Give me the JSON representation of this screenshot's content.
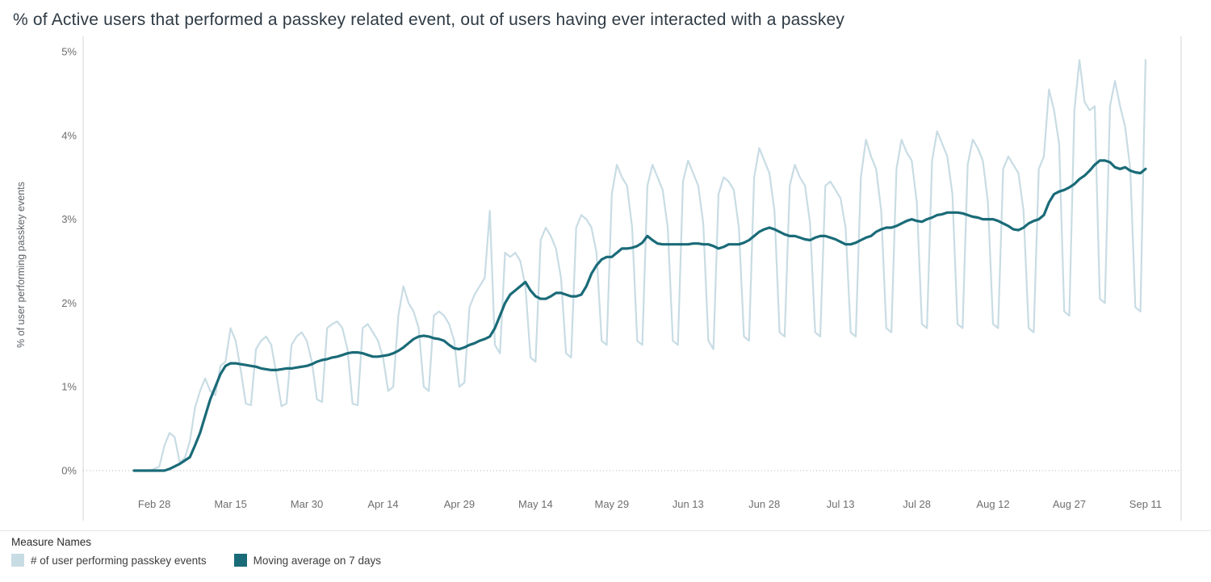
{
  "chart_data": {
    "type": "line",
    "title": "% of Active users that performed a passkey related event, out of users having ever interacted with a passkey",
    "ylabel": "% of user performing passkey events",
    "xlabel": "",
    "ylim": [
      0,
      5
    ],
    "x_domain_days": [
      -10,
      206
    ],
    "x_unit": "daily points; index 0 is 4 days before the Feb 28 tick; ticks every 15 days",
    "grid": "no gridlines except dotted zero line; left and right plot borders only",
    "legend_position": "bottom-left",
    "yticks": [
      {
        "value": 0,
        "label": "0%"
      },
      {
        "value": 1,
        "label": "1%"
      },
      {
        "value": 2,
        "label": "2%"
      },
      {
        "value": 3,
        "label": "3%"
      },
      {
        "value": 4,
        "label": "4%"
      },
      {
        "value": 5,
        "label": "5%"
      }
    ],
    "xticks": [
      {
        "day": 4,
        "label": "Feb 28"
      },
      {
        "day": 19,
        "label": "Mar 15"
      },
      {
        "day": 34,
        "label": "Mar 30"
      },
      {
        "day": 49,
        "label": "Apr 14"
      },
      {
        "day": 64,
        "label": "Apr 29"
      },
      {
        "day": 79,
        "label": "May 14"
      },
      {
        "day": 94,
        "label": "May 29"
      },
      {
        "day": 109,
        "label": "Jun 13"
      },
      {
        "day": 124,
        "label": "Jun 28"
      },
      {
        "day": 139,
        "label": "Jul 13"
      },
      {
        "day": 154,
        "label": "Jul 28"
      },
      {
        "day": 169,
        "label": "Aug 12"
      },
      {
        "day": 184,
        "label": "Aug 27"
      },
      {
        "day": 199,
        "label": "Sep 11"
      }
    ],
    "series": [
      {
        "name": "# of user performing passkey events",
        "color": "#c8dce4",
        "values": [
          0.0,
          0.0,
          0.0,
          0.0,
          0.02,
          0.05,
          0.3,
          0.45,
          0.4,
          0.1,
          0.15,
          0.35,
          0.75,
          0.95,
          1.1,
          0.95,
          0.9,
          1.25,
          1.3,
          1.7,
          1.55,
          1.2,
          0.8,
          0.78,
          1.45,
          1.55,
          1.6,
          1.5,
          1.15,
          0.77,
          0.8,
          1.5,
          1.6,
          1.65,
          1.55,
          1.3,
          0.85,
          0.82,
          1.7,
          1.75,
          1.78,
          1.7,
          1.45,
          0.8,
          0.78,
          1.7,
          1.75,
          1.65,
          1.55,
          1.35,
          0.95,
          1.0,
          1.85,
          2.2,
          2.0,
          1.9,
          1.7,
          1.0,
          0.95,
          1.85,
          1.9,
          1.85,
          1.75,
          1.55,
          1.0,
          1.05,
          1.95,
          2.1,
          2.2,
          2.3,
          3.1,
          1.5,
          1.4,
          2.6,
          2.55,
          2.6,
          2.5,
          2.2,
          1.35,
          1.3,
          2.75,
          2.9,
          2.8,
          2.65,
          2.3,
          1.4,
          1.35,
          2.9,
          3.05,
          3.0,
          2.9,
          2.6,
          1.55,
          1.5,
          3.3,
          3.65,
          3.5,
          3.4,
          2.9,
          1.55,
          1.5,
          3.4,
          3.65,
          3.5,
          3.35,
          2.9,
          1.55,
          1.5,
          3.45,
          3.7,
          3.55,
          3.4,
          2.95,
          1.55,
          1.45,
          3.3,
          3.5,
          3.45,
          3.35,
          2.9,
          1.6,
          1.55,
          3.5,
          3.85,
          3.7,
          3.55,
          3.1,
          1.65,
          1.6,
          3.4,
          3.65,
          3.5,
          3.4,
          2.95,
          1.65,
          1.6,
          3.4,
          3.45,
          3.35,
          3.25,
          2.9,
          1.65,
          1.6,
          3.5,
          3.95,
          3.75,
          3.6,
          3.1,
          1.7,
          1.65,
          3.6,
          3.95,
          3.8,
          3.7,
          3.2,
          1.75,
          1.7,
          3.7,
          4.05,
          3.9,
          3.75,
          3.3,
          1.75,
          1.7,
          3.65,
          3.95,
          3.85,
          3.7,
          3.2,
          1.75,
          1.7,
          3.6,
          3.75,
          3.65,
          3.55,
          3.1,
          1.7,
          1.65,
          3.6,
          3.75,
          4.55,
          4.3,
          3.9,
          1.9,
          1.85,
          4.3,
          4.9,
          4.4,
          4.3,
          4.35,
          2.05,
          2.0,
          4.35,
          4.65,
          4.35,
          4.1,
          3.6,
          1.95,
          1.9,
          4.9
        ]
      },
      {
        "name": "Moving average on 7 days",
        "color": "#1a6b78",
        "values": [
          0.0,
          0.0,
          0.0,
          0.0,
          0.0,
          0.0,
          0.0,
          0.02,
          0.05,
          0.08,
          0.12,
          0.16,
          0.3,
          0.45,
          0.65,
          0.85,
          1.0,
          1.15,
          1.25,
          1.28,
          1.28,
          1.27,
          1.26,
          1.25,
          1.24,
          1.22,
          1.21,
          1.2,
          1.2,
          1.21,
          1.22,
          1.22,
          1.23,
          1.24,
          1.25,
          1.27,
          1.3,
          1.32,
          1.33,
          1.35,
          1.36,
          1.38,
          1.4,
          1.41,
          1.41,
          1.4,
          1.38,
          1.36,
          1.36,
          1.37,
          1.38,
          1.4,
          1.43,
          1.47,
          1.52,
          1.57,
          1.6,
          1.61,
          1.6,
          1.58,
          1.57,
          1.55,
          1.5,
          1.46,
          1.45,
          1.47,
          1.5,
          1.52,
          1.55,
          1.57,
          1.6,
          1.7,
          1.85,
          2.0,
          2.1,
          2.15,
          2.2,
          2.25,
          2.15,
          2.08,
          2.05,
          2.05,
          2.08,
          2.12,
          2.12,
          2.1,
          2.08,
          2.08,
          2.1,
          2.2,
          2.35,
          2.45,
          2.52,
          2.55,
          2.55,
          2.6,
          2.65,
          2.65,
          2.66,
          2.68,
          2.72,
          2.8,
          2.75,
          2.71,
          2.7,
          2.7,
          2.7,
          2.7,
          2.7,
          2.7,
          2.71,
          2.71,
          2.7,
          2.7,
          2.68,
          2.65,
          2.67,
          2.7,
          2.7,
          2.7,
          2.72,
          2.75,
          2.8,
          2.85,
          2.88,
          2.9,
          2.88,
          2.85,
          2.82,
          2.8,
          2.8,
          2.78,
          2.76,
          2.75,
          2.78,
          2.8,
          2.8,
          2.78,
          2.76,
          2.73,
          2.7,
          2.7,
          2.72,
          2.75,
          2.78,
          2.8,
          2.85,
          2.88,
          2.9,
          2.9,
          2.92,
          2.95,
          2.98,
          3.0,
          2.98,
          2.97,
          3.0,
          3.02,
          3.05,
          3.06,
          3.08,
          3.08,
          3.08,
          3.07,
          3.05,
          3.03,
          3.02,
          3.0,
          3.0,
          3.0,
          2.98,
          2.95,
          2.92,
          2.88,
          2.87,
          2.9,
          2.95,
          2.98,
          3.0,
          3.05,
          3.2,
          3.3,
          3.33,
          3.35,
          3.38,
          3.42,
          3.48,
          3.52,
          3.58,
          3.65,
          3.7,
          3.7,
          3.68,
          3.62,
          3.6,
          3.62,
          3.58,
          3.56,
          3.55,
          3.6
        ]
      }
    ]
  },
  "legend": {
    "title": "Measure Names",
    "items": [
      {
        "label": "# of user performing passkey events",
        "color": "#c8dce4"
      },
      {
        "label": "Moving average on 7 days",
        "color": "#1a6b78"
      }
    ]
  }
}
